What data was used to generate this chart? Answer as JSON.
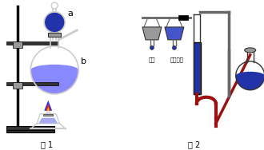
{
  "fig_width": 3.3,
  "fig_height": 1.88,
  "dpi": 100,
  "bg_color": "#ffffff",
  "fig1_label": "图 1",
  "fig2_label": "图 2",
  "label_a": "a",
  "label_b": "b",
  "text_left": "棒棒",
  "text_right": "残留液滴",
  "blue_fill": "#6666ee",
  "blue_light": "#8888ff",
  "blue_medium": "#4455cc",
  "blue_dark": "#2233aa",
  "gray_color": "#999999",
  "dark_gray": "#333333",
  "mid_gray": "#666666",
  "red_tube": "#991111",
  "flame_blue": "#3333ee",
  "flame_red": "#ee2200",
  "flame_yellow": "#ffcc00",
  "black": "#000000",
  "stand_color": "#111111",
  "glass_color": "#cccccc",
  "white": "#ffffff"
}
